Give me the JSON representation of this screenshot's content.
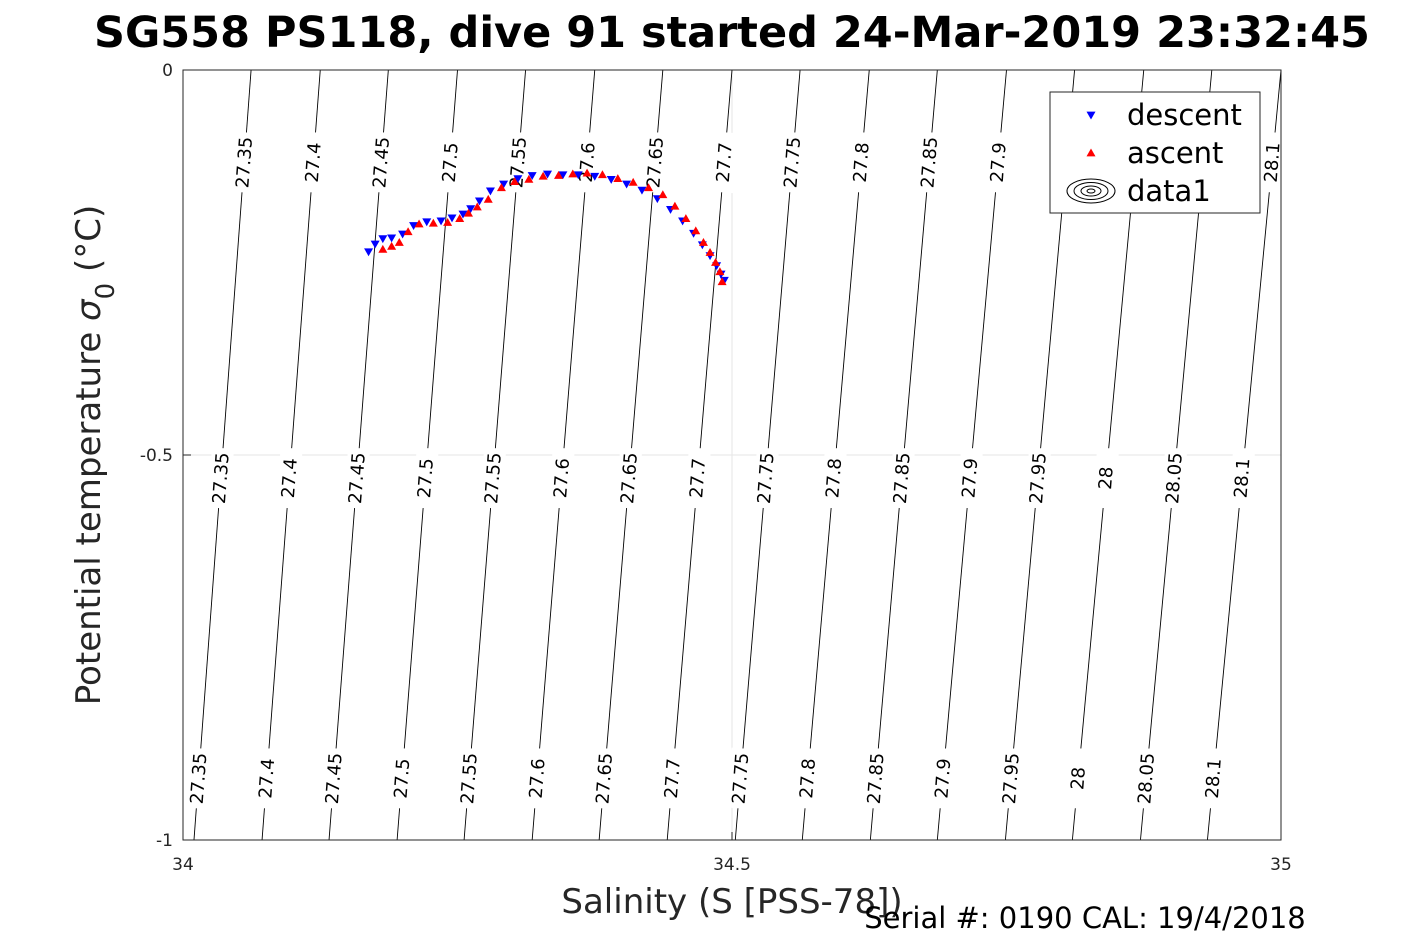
{
  "chart_data": {
    "type": "scatter",
    "title": "SG558 PS118, dive 91 started 24-Mar-2019 23:32:45",
    "xlabel": "Salinity (S [PSS-78])",
    "ylabel_prefix": "Potential temperature ",
    "ylabel_symbol": "σ",
    "ylabel_subscript": "0",
    "ylabel_suffix": " (°C)",
    "footer": "Serial #: 0190  CAL: 19/4/2018",
    "xlim": [
      34,
      35
    ],
    "ylim": [
      -1,
      0
    ],
    "xticks": [
      {
        "value": 34,
        "label": "34"
      },
      {
        "value": 34.5,
        "label": "34.5"
      },
      {
        "value": 35,
        "label": "35"
      }
    ],
    "yticks": [
      {
        "value": 0,
        "label": "0"
      },
      {
        "value": -0.5,
        "label": "-0.5"
      },
      {
        "value": -1,
        "label": "-1"
      }
    ],
    "grid": true,
    "legend": {
      "position": "top-right",
      "entries": [
        {
          "name": "descent",
          "marker": "triangle-down",
          "color": "#0000ff"
        },
        {
          "name": "ascent",
          "marker": "triangle-up",
          "color": "#ff0000"
        },
        {
          "name": "data1",
          "marker": "contour",
          "color": "#000000"
        }
      ]
    },
    "isopycnals": {
      "levels": [
        "27.35",
        "27.4",
        "27.45",
        "27.5",
        "27.55",
        "27.6",
        "27.65",
        "27.7",
        "27.75",
        "27.8",
        "27.85",
        "27.9",
        "27.95",
        "28",
        "28.05",
        "28.1"
      ],
      "s_at_top": [
        34.062,
        34.125,
        34.187,
        34.25,
        34.312,
        34.375,
        34.437,
        34.5,
        34.562,
        34.625,
        34.687,
        34.75,
        34.812,
        34.875,
        34.937,
        35.0
      ],
      "s_at_bottom": [
        34.01,
        34.072,
        34.133,
        34.195,
        34.256,
        34.318,
        34.379,
        34.441,
        34.503,
        34.564,
        34.626,
        34.687,
        34.749,
        34.81,
        34.872,
        34.933
      ],
      "label_rows": [
        {
          "theta": -0.12,
          "levels": [
            "27.35",
            "27.4",
            "27.45",
            "27.5",
            "27.55",
            "27.6",
            "27.65",
            "27.7",
            "27.75",
            "27.8",
            "27.85",
            "27.9",
            "27.95",
            "28.1"
          ]
        },
        {
          "theta": -0.53,
          "levels": [
            "27.35",
            "27.4",
            "27.45",
            "27.5",
            "27.55",
            "27.6",
            "27.65",
            "27.7",
            "27.75",
            "27.8",
            "27.85",
            "27.9",
            "27.95",
            "28",
            "28.05",
            "28.1"
          ]
        },
        {
          "theta": -0.92,
          "levels": [
            "27.35",
            "27.4",
            "27.45",
            "27.5",
            "27.55",
            "27.6",
            "27.65",
            "27.7",
            "27.75",
            "27.8",
            "27.85",
            "27.9",
            "27.95",
            "28",
            "28.05",
            "28.1"
          ]
        }
      ]
    },
    "series": [
      {
        "name": "descent",
        "color": "#0000ff",
        "marker": "triangle-down",
        "x": [
          34.169,
          34.175,
          34.182,
          34.19,
          34.2,
          34.21,
          34.222,
          34.235,
          34.245,
          34.255,
          34.262,
          34.27,
          34.28,
          34.292,
          34.305,
          34.318,
          34.332,
          34.346,
          34.36,
          34.375,
          34.39,
          34.404,
          34.418,
          34.432,
          34.444,
          34.455,
          34.465,
          34.473,
          34.48,
          34.486,
          34.49,
          34.493
        ],
        "y": [
          -0.236,
          -0.226,
          -0.219,
          -0.218,
          -0.213,
          -0.202,
          -0.197,
          -0.196,
          -0.192,
          -0.187,
          -0.18,
          -0.17,
          -0.157,
          -0.148,
          -0.141,
          -0.137,
          -0.135,
          -0.136,
          -0.136,
          -0.138,
          -0.142,
          -0.148,
          -0.156,
          -0.167,
          -0.181,
          -0.196,
          -0.212,
          -0.227,
          -0.241,
          -0.254,
          -0.265,
          -0.273
        ]
      },
      {
        "name": "ascent",
        "color": "#ff0000",
        "marker": "triangle-up",
        "x": [
          34.182,
          34.19,
          34.197,
          34.205,
          34.215,
          34.228,
          34.241,
          34.252,
          34.26,
          34.268,
          34.278,
          34.29,
          34.302,
          34.315,
          34.328,
          34.342,
          34.355,
          34.368,
          34.382,
          34.396,
          34.41,
          34.424,
          34.437,
          34.448,
          34.458,
          34.467,
          34.474,
          34.48,
          34.485,
          34.489,
          34.491
        ],
        "y": [
          -0.233,
          -0.229,
          -0.224,
          -0.21,
          -0.2,
          -0.199,
          -0.198,
          -0.193,
          -0.186,
          -0.178,
          -0.168,
          -0.153,
          -0.145,
          -0.142,
          -0.138,
          -0.137,
          -0.135,
          -0.134,
          -0.136,
          -0.141,
          -0.146,
          -0.153,
          -0.162,
          -0.177,
          -0.193,
          -0.209,
          -0.224,
          -0.237,
          -0.25,
          -0.262,
          -0.275
        ]
      }
    ]
  }
}
